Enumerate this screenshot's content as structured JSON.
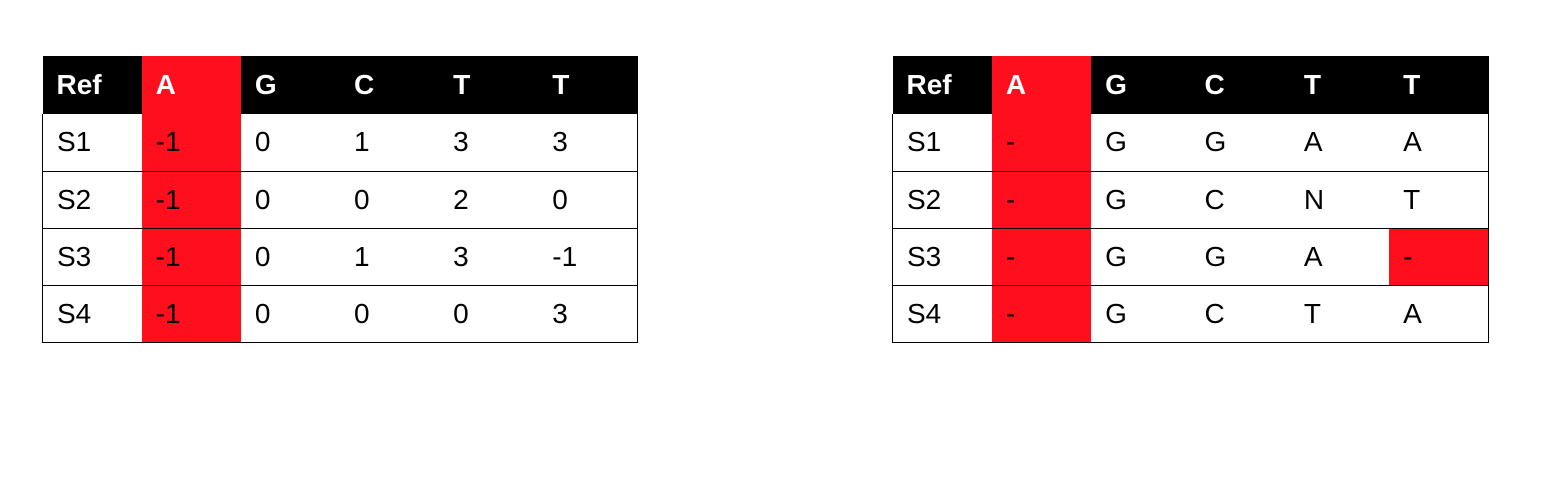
{
  "highlight_color": "#ff0f1e",
  "header_color": "#000000",
  "left_table": {
    "header": [
      "Ref",
      "A",
      "G",
      "C",
      "T",
      "T"
    ],
    "rows": [
      [
        "S1",
        "-1",
        "0",
        "1",
        "3",
        "3"
      ],
      [
        "S2",
        "-1",
        "0",
        "0",
        "2",
        "0"
      ],
      [
        "S3",
        "-1",
        "0",
        "1",
        "3",
        "-1"
      ],
      [
        "S4",
        "-1",
        "0",
        "0",
        "0",
        "3"
      ]
    ]
  },
  "right_table": {
    "header": [
      "Ref",
      "A",
      "G",
      "C",
      "T",
      "T"
    ],
    "rows": [
      [
        "S1",
        "-",
        "G",
        "G",
        "A",
        "A"
      ],
      [
        "S2",
        "-",
        "G",
        "C",
        "N",
        "T"
      ],
      [
        "S3",
        "-",
        "G",
        "G",
        "A",
        "-"
      ],
      [
        "S4",
        "-",
        "G",
        "C",
        "T",
        "A"
      ]
    ]
  }
}
